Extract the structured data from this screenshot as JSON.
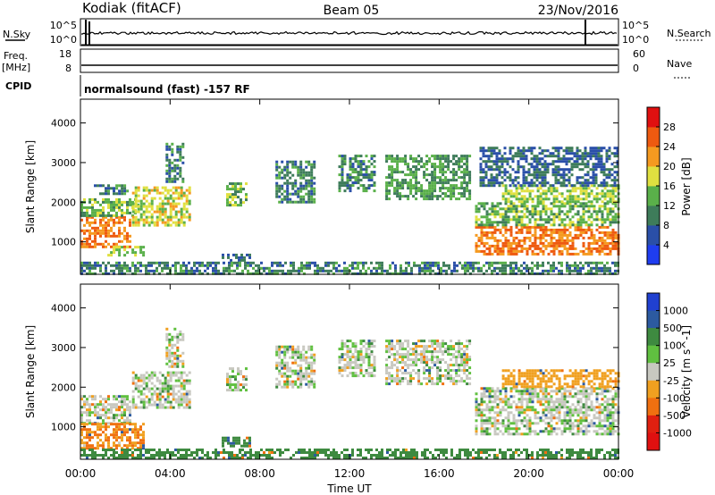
{
  "header": {
    "station": "Kodiak (fitACF)",
    "beam": "Beam 05",
    "date": "23/Nov/2016"
  },
  "aux_panels": {
    "nsky_label": "N.Sky",
    "nsky_ticks": [
      "10^5",
      "10^0"
    ],
    "nsearch_label": "N.Search",
    "nsearch_ticks": [
      "10^5",
      "10^0"
    ],
    "freq_label": "Freq.",
    "freq_unit": "[MHz]",
    "freq_ticks": [
      "18",
      "8"
    ],
    "nave_label": "Nave",
    "nave_ticks": [
      "60",
      "0"
    ],
    "cpid_label": "CPID",
    "cpid_value": "normalsound (fast) -157 RF"
  },
  "chart_data": [
    {
      "type": "heatmap",
      "parameter": "power",
      "ylabel": "Slant Range [km]",
      "ylim": [
        180,
        4600
      ],
      "yticks": [
        "1000",
        "2000",
        "3000",
        "4000"
      ],
      "xlim_hours": [
        0,
        24
      ],
      "colorbar": {
        "label": "Power [dB]",
        "ticks": [
          "4",
          "8",
          "12",
          "16",
          "20",
          "24",
          "28"
        ],
        "colors": [
          "#1f3df0",
          "#2a4fa8",
          "#3e7c5a",
          "#5ab04a",
          "#e0e040",
          "#f59a20",
          "#ee5a10",
          "#e01010"
        ]
      },
      "echo_regions": [
        {
          "t0": 0.0,
          "t1": 2.2,
          "r0": 900,
          "r1": 1650,
          "power": 24
        },
        {
          "t0": 0.0,
          "t1": 2.6,
          "r0": 1650,
          "r1": 2100,
          "power": 14
        },
        {
          "t0": 0.6,
          "t1": 2.1,
          "r0": 2200,
          "r1": 2450,
          "power": 9
        },
        {
          "t0": 2.3,
          "t1": 4.9,
          "r0": 1400,
          "r1": 2400,
          "power": 18
        },
        {
          "t0": 3.8,
          "t1": 4.6,
          "r0": 2500,
          "r1": 3500,
          "power": 10
        },
        {
          "t0": 1.2,
          "t1": 2.8,
          "r0": 650,
          "r1": 900,
          "power": 16
        },
        {
          "t0": 6.5,
          "t1": 7.4,
          "r0": 1900,
          "r1": 2500,
          "power": 14
        },
        {
          "t0": 6.3,
          "t1": 7.6,
          "r0": 500,
          "r1": 700,
          "power": 8
        },
        {
          "t0": 8.7,
          "t1": 10.4,
          "r0": 2000,
          "r1": 3050,
          "power": 10
        },
        {
          "t0": 11.5,
          "t1": 13.1,
          "r0": 2300,
          "r1": 3200,
          "power": 10
        },
        {
          "t0": 13.6,
          "t1": 17.4,
          "r0": 2100,
          "r1": 3200,
          "power": 12
        },
        {
          "t0": 17.6,
          "t1": 24.0,
          "r0": 700,
          "r1": 1400,
          "power": 24
        },
        {
          "t0": 17.6,
          "t1": 24.0,
          "r0": 1400,
          "r1": 2000,
          "power": 14
        },
        {
          "t0": 18.8,
          "t1": 24.0,
          "r0": 2000,
          "r1": 2450,
          "power": 16
        },
        {
          "t0": 17.8,
          "t1": 24.0,
          "r0": 2450,
          "r1": 3400,
          "power": 8
        },
        {
          "t0": 0.0,
          "t1": 24.0,
          "r0": 200,
          "r1": 500,
          "power": 10
        }
      ]
    },
    {
      "type": "heatmap",
      "parameter": "velocity",
      "ylabel": "Slant Range [km]",
      "ylim": [
        180,
        4600
      ],
      "yticks": [
        "1000",
        "2000",
        "3000",
        "4000"
      ],
      "xlim_hours": [
        0,
        24
      ],
      "colorbar": {
        "label": "Velocity [m s^-1]",
        "ticks": [
          "1000",
          "500",
          "100",
          "25",
          "-25",
          "-100",
          "-500",
          "-1000"
        ],
        "colors": [
          "#2040d0",
          "#2c5aa0",
          "#3e8a40",
          "#60c040",
          "#c8c8c0",
          "#f0a020",
          "#f07010",
          "#e02010",
          "#e01010"
        ]
      },
      "echo_regions": [
        {
          "t0": 0.0,
          "t1": 2.2,
          "r0": 1100,
          "r1": 1800,
          "velocity": 0
        },
        {
          "t0": 0.0,
          "t1": 2.8,
          "r0": 450,
          "r1": 1100,
          "velocity": -100
        },
        {
          "t0": 2.3,
          "t1": 4.9,
          "r0": 1500,
          "r1": 2400,
          "velocity": 0
        },
        {
          "t0": 3.8,
          "t1": 4.6,
          "r0": 2500,
          "r1": 3500,
          "velocity": 0
        },
        {
          "t0": 6.5,
          "t1": 7.4,
          "r0": 1900,
          "r1": 2500,
          "velocity": 0
        },
        {
          "t0": 6.3,
          "t1": 7.6,
          "r0": 500,
          "r1": 750,
          "velocity": 80
        },
        {
          "t0": 8.7,
          "t1": 10.4,
          "r0": 2000,
          "r1": 3050,
          "velocity": 0
        },
        {
          "t0": 11.5,
          "t1": 13.1,
          "r0": 2300,
          "r1": 3200,
          "velocity": 0
        },
        {
          "t0": 13.6,
          "t1": 17.4,
          "r0": 2100,
          "r1": 3200,
          "velocity": 0
        },
        {
          "t0": 17.6,
          "t1": 24.0,
          "r0": 800,
          "r1": 2000,
          "velocity": 0
        },
        {
          "t0": 18.8,
          "t1": 24.0,
          "r0": 2000,
          "r1": 2450,
          "velocity": -60
        },
        {
          "t0": 0.0,
          "t1": 24.0,
          "r0": 200,
          "r1": 450,
          "velocity": 60
        }
      ]
    }
  ],
  "xaxis": {
    "ticks": [
      "00:00",
      "04:00",
      "08:00",
      "12:00",
      "16:00",
      "20:00",
      "00:00"
    ],
    "label": "Time UT"
  }
}
